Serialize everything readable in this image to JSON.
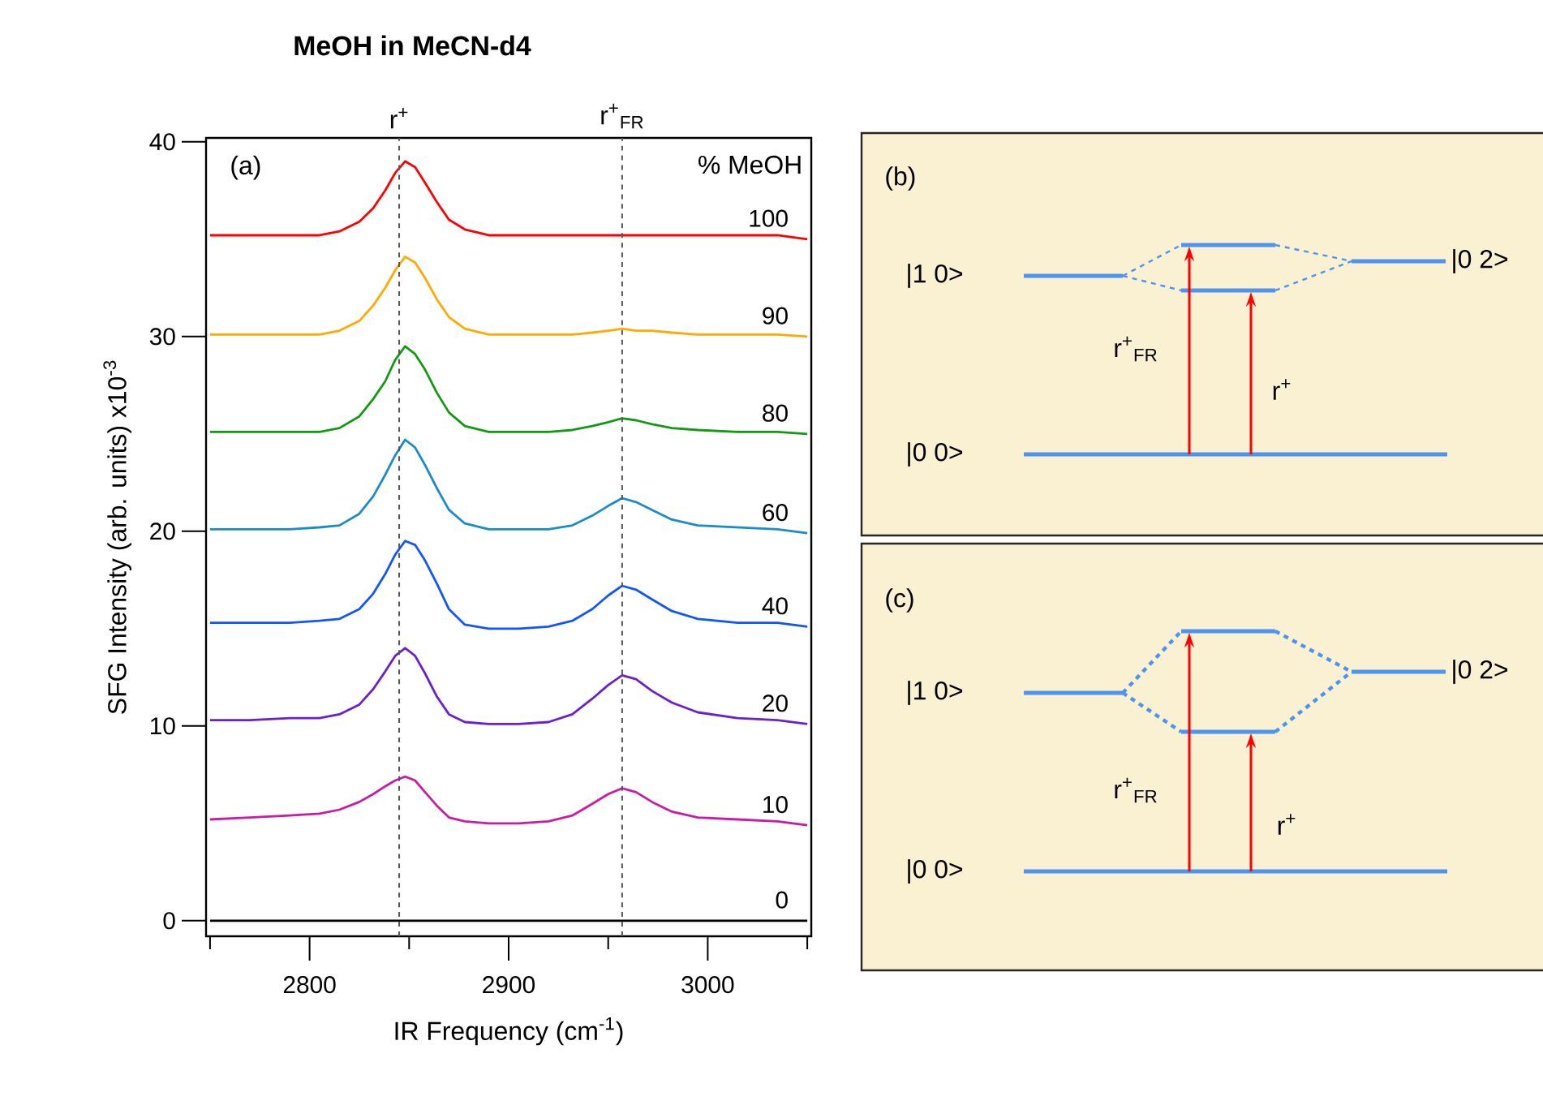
{
  "chart_data": [
    {
      "type": "line",
      "title": "MeOH in MeCN-d4",
      "xlabel": "IR Frequency (cm$^{-1}$)",
      "ylabel": "SFG Intensity (arb. units) x10$^{-3}$",
      "legend_title": "% MeOH",
      "annotations": [
        "(a)"
      ],
      "xlim": [
        2748,
        3052
      ],
      "ylim": [
        -0.8,
        40.2
      ],
      "xticks": [
        {
          "value": 2750,
          "label": null
        },
        2800,
        {
          "value": 2850,
          "label": null
        },
        2900,
        {
          "value": 2950,
          "label": null
        },
        3000,
        {
          "value": 3050,
          "label": null
        }
      ],
      "yticks": [
        0,
        10,
        20,
        30,
        40
      ],
      "line_style": "solid",
      "ref_lines": [
        {
          "axis": "x",
          "value": 2845,
          "label": "r$^{+}$",
          "color": "#555555",
          "line_style": "dashed"
        },
        {
          "axis": "x",
          "value": 2957,
          "label": "r$^{+}$$_{FR}$",
          "color": "#555555",
          "line_style": "dashed"
        }
      ],
      "x": [
        2750,
        2770,
        2790,
        2805,
        2815,
        2825,
        2832,
        2838,
        2843,
        2848,
        2853,
        2858,
        2864,
        2870,
        2878,
        2890,
        2905,
        2920,
        2932,
        2942,
        2950,
        2957,
        2964,
        2972,
        2982,
        2995,
        3015,
        3035,
        3050
      ],
      "series": [
        {
          "name": "100",
          "color": "#ff0000",
          "values": [
            35.2,
            35.2,
            35.2,
            35.2,
            35.4,
            35.9,
            36.6,
            37.5,
            38.4,
            39.0,
            38.7,
            37.9,
            36.9,
            36.0,
            35.5,
            35.2,
            35.2,
            35.2,
            35.2,
            35.2,
            35.2,
            35.2,
            35.2,
            35.2,
            35.2,
            35.2,
            35.2,
            35.2,
            35.0
          ]
        },
        {
          "name": "90",
          "color": "#ffaa00",
          "values": [
            30.1,
            30.1,
            30.1,
            30.1,
            30.3,
            30.8,
            31.6,
            32.5,
            33.4,
            34.1,
            33.8,
            33.0,
            31.9,
            31.0,
            30.4,
            30.1,
            30.1,
            30.1,
            30.1,
            30.2,
            30.3,
            30.4,
            30.3,
            30.3,
            30.2,
            30.1,
            30.1,
            30.1,
            30.0
          ]
        },
        {
          "name": "80",
          "color": "#129a12",
          "values": [
            25.1,
            25.1,
            25.1,
            25.1,
            25.3,
            25.9,
            26.8,
            27.7,
            28.8,
            29.5,
            29.1,
            28.3,
            27.1,
            26.1,
            25.4,
            25.1,
            25.1,
            25.1,
            25.2,
            25.4,
            25.6,
            25.8,
            25.7,
            25.5,
            25.3,
            25.2,
            25.1,
            25.1,
            25.0
          ]
        },
        {
          "name": "60",
          "color": "#1a8ccc",
          "values": [
            20.1,
            20.1,
            20.1,
            20.2,
            20.3,
            20.9,
            21.8,
            22.9,
            23.9,
            24.7,
            24.3,
            23.4,
            22.2,
            21.1,
            20.4,
            20.1,
            20.1,
            20.1,
            20.3,
            20.8,
            21.3,
            21.7,
            21.5,
            21.1,
            20.6,
            20.3,
            20.2,
            20.1,
            19.9
          ]
        },
        {
          "name": "40",
          "color": "#1155ff",
          "values": [
            15.3,
            15.3,
            15.3,
            15.4,
            15.5,
            16.0,
            16.8,
            17.8,
            18.8,
            19.5,
            19.3,
            18.5,
            17.3,
            16.0,
            15.2,
            15.0,
            15.0,
            15.1,
            15.4,
            16.0,
            16.7,
            17.2,
            17.0,
            16.5,
            15.9,
            15.5,
            15.3,
            15.3,
            15.1
          ]
        },
        {
          "name": "20",
          "color": "#6a1fd0",
          "values": [
            10.3,
            10.3,
            10.4,
            10.4,
            10.6,
            11.1,
            11.9,
            12.8,
            13.6,
            14.0,
            13.6,
            12.7,
            11.5,
            10.6,
            10.2,
            10.1,
            10.1,
            10.2,
            10.6,
            11.4,
            12.1,
            12.6,
            12.4,
            11.8,
            11.2,
            10.7,
            10.4,
            10.3,
            10.1
          ]
        },
        {
          "name": "10",
          "color": "#cc1aa8",
          "values": [
            5.2,
            5.3,
            5.4,
            5.5,
            5.7,
            6.1,
            6.5,
            6.9,
            7.2,
            7.4,
            7.2,
            6.6,
            5.9,
            5.3,
            5.1,
            5.0,
            5.0,
            5.1,
            5.4,
            6.0,
            6.5,
            6.8,
            6.6,
            6.1,
            5.6,
            5.3,
            5.2,
            5.1,
            4.9
          ]
        },
        {
          "name": "0",
          "color": "#000000",
          "values": [
            0.0,
            0.0,
            0.0,
            0.0,
            0.0,
            0.0,
            0.0,
            0.0,
            0.0,
            0.0,
            0.0,
            0.0,
            0.0,
            0.0,
            0.0,
            0.0,
            0.0,
            0.0,
            0.0,
            0.0,
            0.0,
            0.0,
            0.0,
            0.0,
            0.0,
            0.0,
            0.0,
            0.0,
            0.0
          ]
        }
      ]
    },
    {
      "type": "other",
      "annotations": [
        "(b)",
        "|1 0>",
        "|0 0>",
        "|0 2>",
        "r$^{+}$$_{FR}$",
        "r$^{+}$"
      ]
    },
    {
      "type": "other",
      "annotations": [
        "(c)",
        "|1 0>",
        "|0 0>",
        "|0 2>",
        "r$^{+}$$_{FR}$",
        "r$^{+}$"
      ]
    }
  ]
}
